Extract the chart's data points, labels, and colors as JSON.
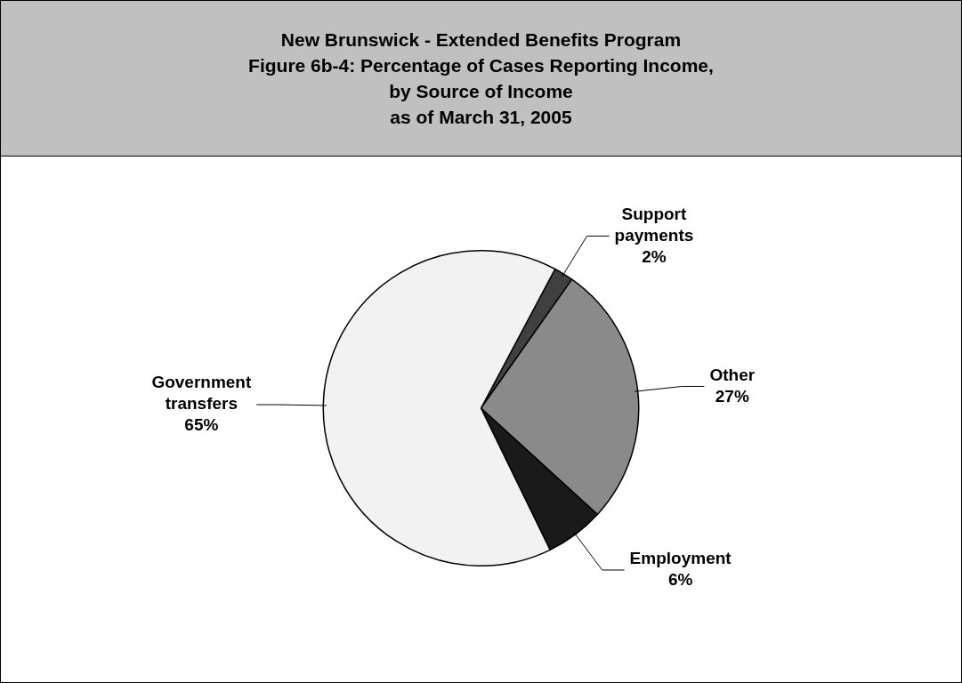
{
  "chart_data": {
    "type": "pie",
    "title": "New Brunswick - Extended Benefits Program\nFigure 6b-4: Percentage of Cases Reporting Income,\nby Source of Income\nas of March 31, 2005",
    "categories": [
      "Support payments",
      "Other",
      "Employment",
      "Government transfers"
    ],
    "values": [
      2,
      27,
      6,
      65
    ],
    "colors": [
      "#404040",
      "#8a8a8a",
      "#1a1a1a",
      "#f2f2f2"
    ],
    "value_labels": [
      "2%",
      "27%",
      "6%",
      "65%"
    ],
    "legend": false
  }
}
